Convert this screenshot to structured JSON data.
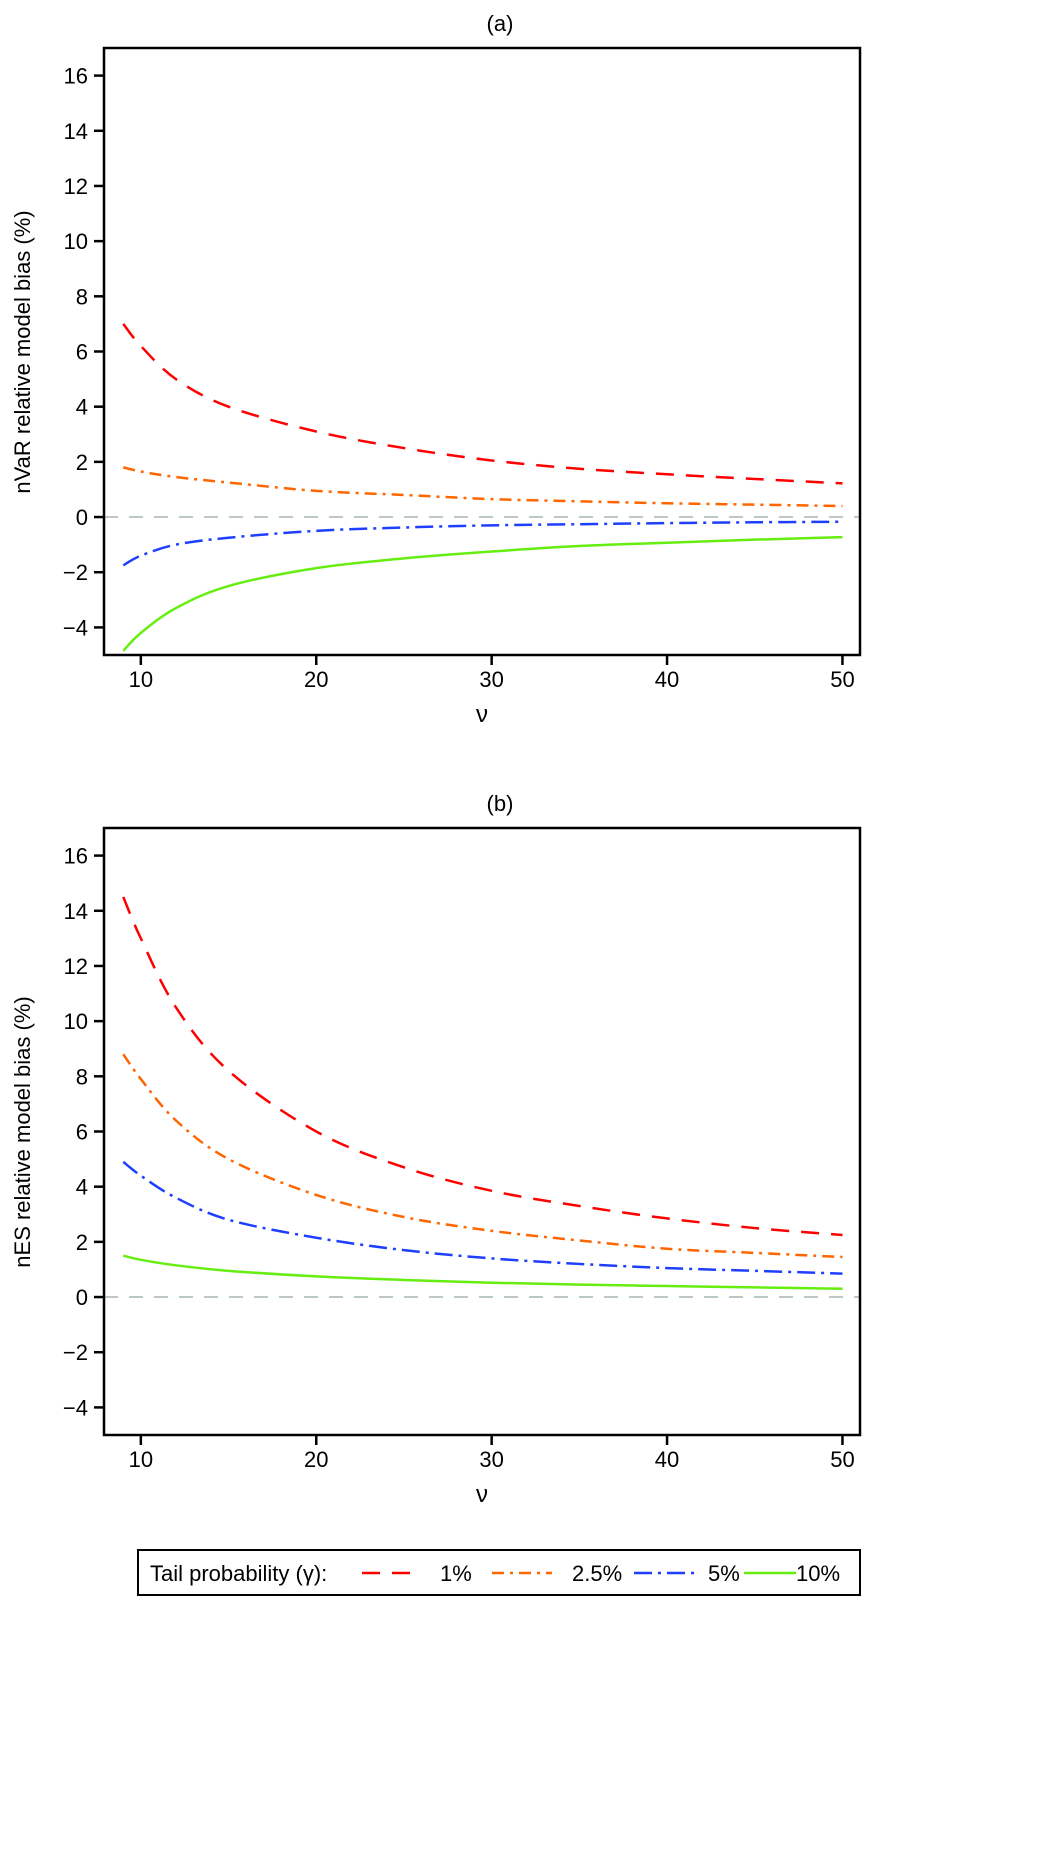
{
  "legend": {
    "title": "Tail probability (γ):",
    "entries": [
      {
        "label": "1%",
        "color": "#ff0000",
        "dash": "longdash"
      },
      {
        "label": "2.5%",
        "color": "#ff6600",
        "dash": "dashdot"
      },
      {
        "label": "5%",
        "color": "#1f3fff",
        "dash": "longdashdot"
      },
      {
        "label": "10%",
        "color": "#66ee11",
        "dash": "solid"
      }
    ]
  },
  "chart_data": [
    {
      "type": "line",
      "title": "(a)",
      "xlabel": "ν",
      "ylabel": "nVaR relative model bias (%)",
      "xlim": [
        7.9,
        51
      ],
      "ylim": [
        -5,
        17
      ],
      "xticks": [
        10,
        20,
        30,
        40,
        50
      ],
      "yticks": [
        -4,
        -2,
        0,
        2,
        4,
        6,
        8,
        10,
        12,
        14,
        16
      ],
      "reference_line": 0,
      "grid": false,
      "x": [
        9,
        10,
        12,
        15,
        20,
        25,
        30,
        35,
        40,
        45,
        50
      ],
      "series": [
        {
          "name": "1%",
          "values": [
            7.0,
            6.2,
            5.0,
            4.0,
            3.1,
            2.5,
            2.05,
            1.75,
            1.55,
            1.38,
            1.22
          ]
        },
        {
          "name": "2.5%",
          "values": [
            1.8,
            1.65,
            1.45,
            1.25,
            0.95,
            0.8,
            0.65,
            0.57,
            0.5,
            0.45,
            0.4
          ]
        },
        {
          "name": "5%",
          "values": [
            -1.75,
            -1.4,
            -1.0,
            -0.75,
            -0.5,
            -0.38,
            -0.3,
            -0.26,
            -0.22,
            -0.19,
            -0.17
          ]
        },
        {
          "name": "10%",
          "values": [
            -4.85,
            -4.2,
            -3.3,
            -2.5,
            -1.85,
            -1.5,
            -1.25,
            -1.05,
            -0.93,
            -0.82,
            -0.73
          ]
        }
      ]
    },
    {
      "type": "line",
      "title": "(b)",
      "xlabel": "ν",
      "ylabel": "nES relative model bias (%)",
      "xlim": [
        7.9,
        51
      ],
      "ylim": [
        -5,
        17
      ],
      "xticks": [
        10,
        20,
        30,
        40,
        50
      ],
      "yticks": [
        -4,
        -2,
        0,
        2,
        4,
        6,
        8,
        10,
        12,
        14,
        16
      ],
      "reference_line": 0,
      "grid": false,
      "x": [
        9,
        10,
        12,
        15,
        20,
        25,
        30,
        35,
        40,
        45,
        50
      ],
      "series": [
        {
          "name": "1%",
          "values": [
            14.5,
            13.0,
            10.5,
            8.2,
            6.0,
            4.7,
            3.85,
            3.3,
            2.85,
            2.5,
            2.25
          ]
        },
        {
          "name": "2.5%",
          "values": [
            8.8,
            7.9,
            6.4,
            5.0,
            3.7,
            2.9,
            2.4,
            2.05,
            1.75,
            1.6,
            1.45
          ]
        },
        {
          "name": "5%",
          "values": [
            4.9,
            4.4,
            3.6,
            2.8,
            2.15,
            1.7,
            1.4,
            1.2,
            1.05,
            0.95,
            0.85
          ]
        },
        {
          "name": "10%",
          "values": [
            1.5,
            1.35,
            1.15,
            0.95,
            0.75,
            0.62,
            0.52,
            0.45,
            0.4,
            0.35,
            0.3
          ]
        }
      ]
    }
  ]
}
